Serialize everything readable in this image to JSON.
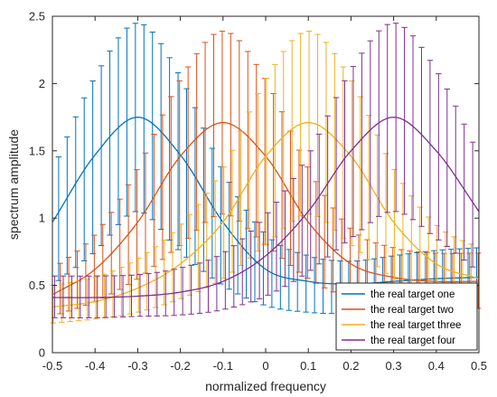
{
  "chart_data": {
    "type": "line",
    "title": "",
    "xlabel": "normalized frequency",
    "ylabel": "spectrum amplitude",
    "xlim": [
      -0.5,
      0.5
    ],
    "ylim": [
      0,
      2.5
    ],
    "x_ticks": [
      -0.5,
      -0.4,
      -0.3,
      -0.2,
      -0.1,
      0,
      0.1,
      0.2,
      0.3,
      0.4,
      0.5
    ],
    "x_tick_labels": [
      "-0.5",
      "-0.4",
      "-0.3",
      "-0.2",
      "-0.1",
      "0",
      "0.1",
      "0.2",
      "0.3",
      "0.4",
      "0.5"
    ],
    "y_ticks": [
      0,
      0.5,
      1,
      1.5,
      2,
      2.5
    ],
    "y_tick_labels": [
      "0",
      "0.5",
      "1",
      "1.5",
      "2",
      "2.5"
    ],
    "grid": false,
    "legend_position": "bottom-right",
    "x": [
      -0.5,
      -0.4,
      -0.3,
      -0.2,
      -0.1,
      0,
      0.1,
      0.2,
      0.3,
      0.4,
      0.5
    ],
    "series": [
      {
        "name": "the real target one",
        "color": "#0072BD",
        "peak_x": -0.3,
        "values": [
          0.97,
          1.47,
          1.75,
          1.47,
          0.97,
          0.62,
          0.53,
          0.51,
          0.53,
          0.55,
          0.56
        ],
        "error_upper": [
          1.35,
          2.05,
          2.45,
          2.05,
          1.35,
          0.88,
          0.72,
          0.68,
          0.72,
          0.76,
          0.78
        ],
        "error_lower": [
          0.5,
          0.75,
          1.05,
          0.75,
          0.5,
          0.35,
          0.3,
          0.29,
          0.3,
          0.32,
          0.33
        ]
      },
      {
        "name": "the real target two",
        "color": "#D95319",
        "peak_x": -0.1,
        "values": [
          0.43,
          0.62,
          0.97,
          1.46,
          1.71,
          1.46,
          0.97,
          0.66,
          0.56,
          0.53,
          0.53
        ],
        "error_upper": [
          0.62,
          0.88,
          1.37,
          2.03,
          2.39,
          2.03,
          1.37,
          0.92,
          0.78,
          0.74,
          0.74
        ],
        "error_lower": [
          0.27,
          0.38,
          0.55,
          0.8,
          1.03,
          0.8,
          0.55,
          0.4,
          0.34,
          0.33,
          0.33
        ]
      },
      {
        "name": "the real target three",
        "color": "#EDB120",
        "peak_x": 0.1,
        "values": [
          0.34,
          0.38,
          0.48,
          0.66,
          0.97,
          1.46,
          1.71,
          1.46,
          0.97,
          0.66,
          0.55
        ],
        "error_upper": [
          0.5,
          0.56,
          0.7,
          0.95,
          1.37,
          2.03,
          2.39,
          2.03,
          1.37,
          0.95,
          0.78
        ],
        "error_lower": [
          0.22,
          0.25,
          0.3,
          0.4,
          0.55,
          0.8,
          1.03,
          0.8,
          0.55,
          0.4,
          0.34
        ]
      },
      {
        "name": "the real target four",
        "color": "#7E2F8E",
        "peak_x": 0.3,
        "values": [
          0.41,
          0.41,
          0.42,
          0.45,
          0.53,
          0.72,
          1.05,
          1.5,
          1.75,
          1.5,
          1.05
        ],
        "error_upper": [
          0.57,
          0.57,
          0.58,
          0.63,
          0.74,
          1.02,
          1.47,
          2.1,
          2.45,
          2.1,
          1.47
        ],
        "error_lower": [
          0.26,
          0.26,
          0.27,
          0.28,
          0.32,
          0.42,
          0.6,
          0.85,
          1.05,
          0.85,
          0.6
        ]
      }
    ]
  }
}
